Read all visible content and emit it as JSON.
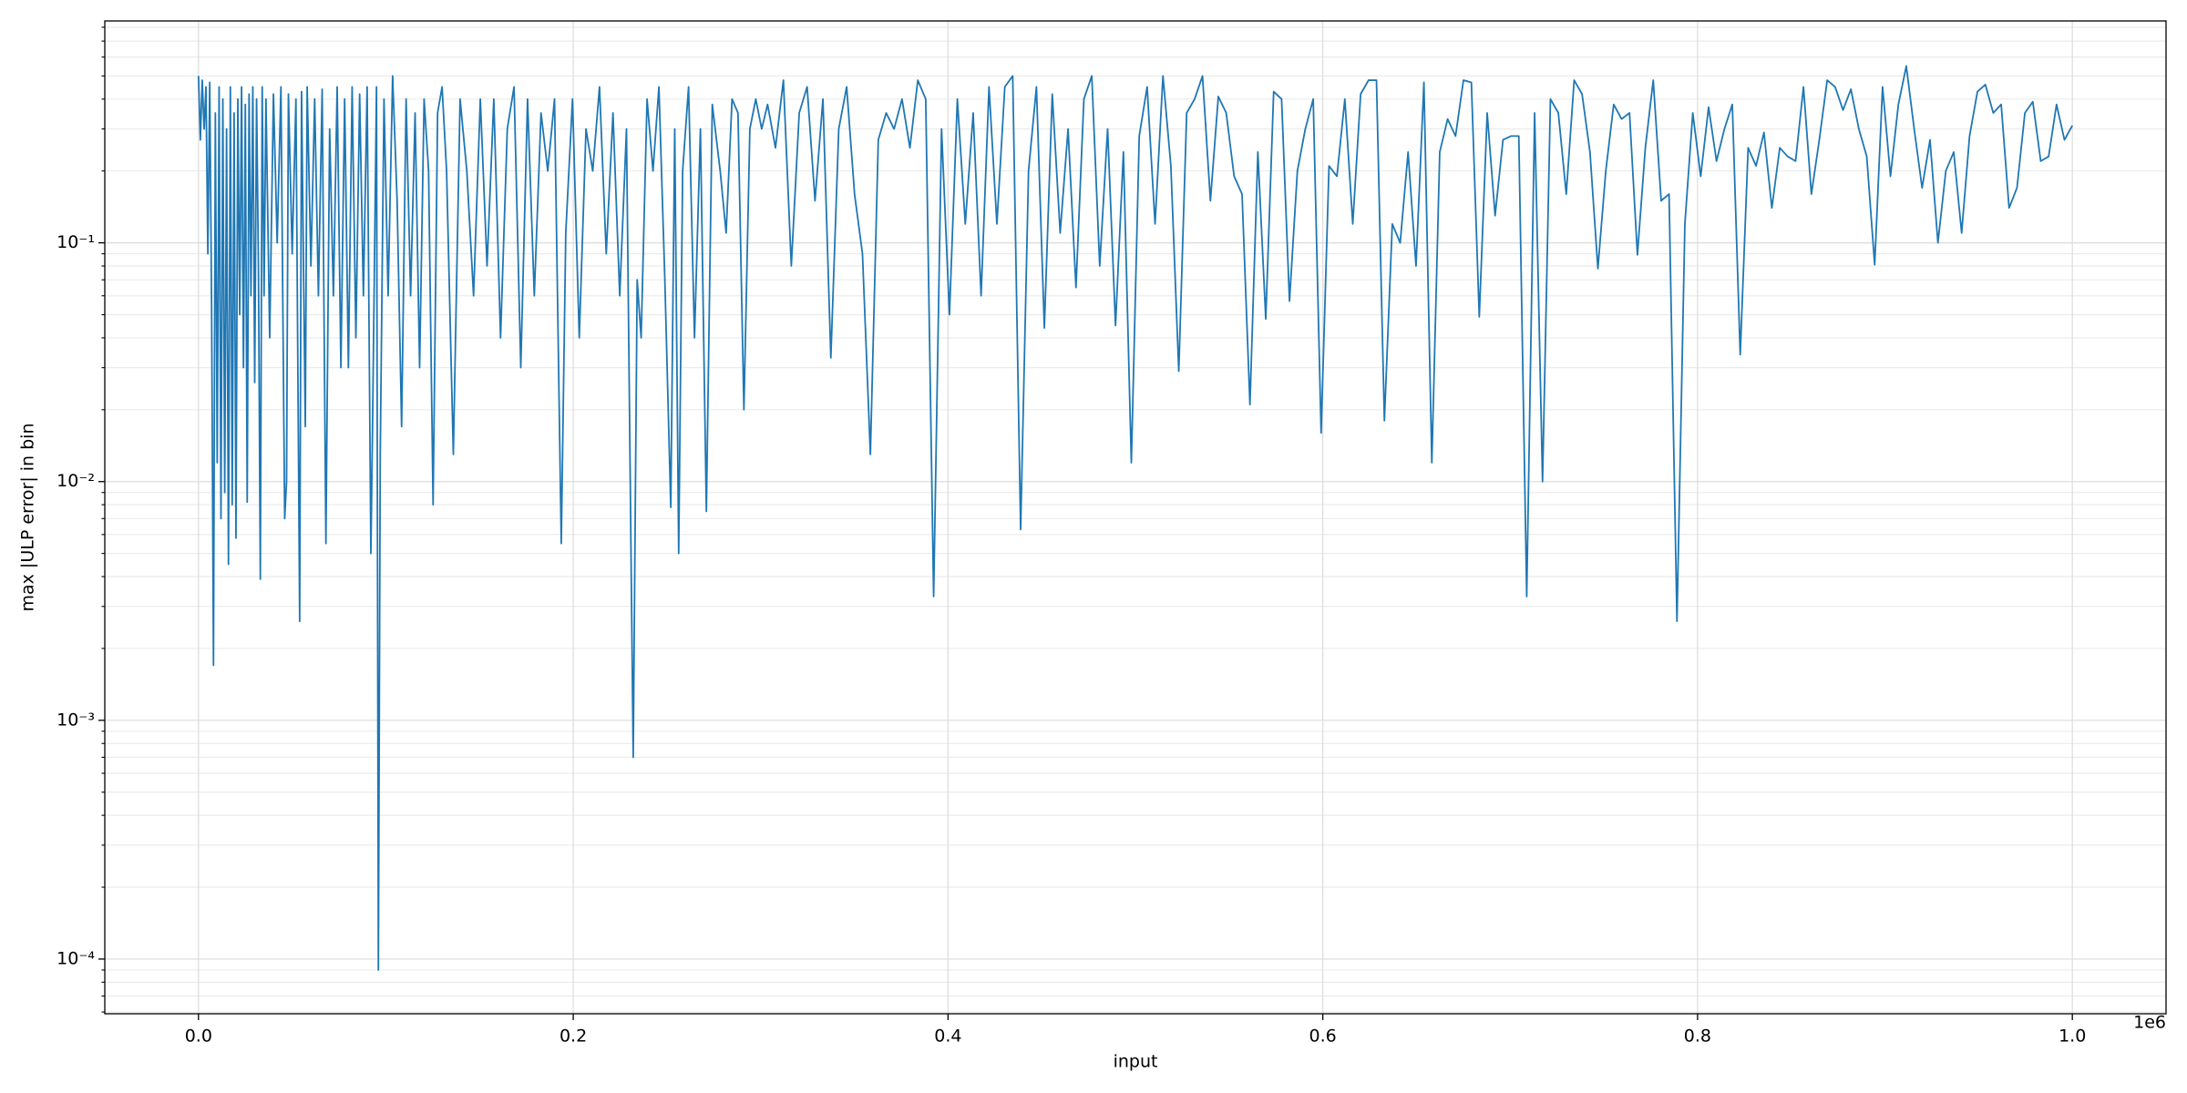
{
  "chart_data": {
    "type": "line",
    "xlabel": "input",
    "ylabel": "max |ULP error| in bin",
    "x_offset_label": "1e6",
    "color": "#1f77b4",
    "yscale": "log",
    "grid": true,
    "xlim": [
      -50000,
      1050000
    ],
    "ylim": [
      5.9e-05,
      0.85
    ],
    "xticks": [
      {
        "value": 0,
        "label": "0.0"
      },
      {
        "value": 200000,
        "label": "0.2"
      },
      {
        "value": 400000,
        "label": "0.4"
      },
      {
        "value": 600000,
        "label": "0.6"
      },
      {
        "value": 800000,
        "label": "0.8"
      },
      {
        "value": 1000000,
        "label": "1.0"
      }
    ],
    "yticks": [
      {
        "value": 0.0001,
        "label": "10⁻⁴"
      },
      {
        "value": 0.001,
        "label": "10⁻³"
      },
      {
        "value": 0.01,
        "label": "10⁻²"
      },
      {
        "value": 0.1,
        "label": "10⁻¹"
      }
    ],
    "yminorticks": [
      6e-05,
      7e-05,
      8e-05,
      9e-05,
      0.0002,
      0.0003,
      0.0004,
      0.0005,
      0.0006,
      0.0007,
      0.0008,
      0.0009,
      0.002,
      0.003,
      0.004,
      0.005,
      0.006,
      0.007,
      0.008,
      0.009,
      0.02,
      0.03,
      0.04,
      0.05,
      0.06,
      0.07,
      0.08,
      0.09,
      0.2,
      0.3,
      0.4,
      0.5,
      0.6,
      0.7,
      0.8
    ],
    "x": [
      0,
      1000,
      2000,
      3000,
      4000,
      5000,
      6000,
      7000,
      8000,
      9000,
      10000,
      11000,
      12000,
      13000,
      14000,
      15000,
      16000,
      17000,
      18000,
      19000,
      20000,
      21000,
      22000,
      23000,
      24000,
      25000,
      26000,
      27000,
      28000,
      29000,
      30000,
      31000,
      32000,
      33000,
      34000,
      35000,
      36000,
      38000,
      40000,
      42000,
      44000,
      46000,
      47000,
      48000,
      50000,
      52000,
      54000,
      55000,
      57000,
      58000,
      60000,
      62000,
      64000,
      66000,
      68000,
      70000,
      72000,
      74000,
      76000,
      78000,
      80000,
      82000,
      84000,
      86000,
      88000,
      90000,
      92000,
      93000,
      95000,
      96000,
      97000,
      99000,
      101200,
      103600,
      106000,
      108400,
      110800,
      113200,
      115600,
      118000,
      120400,
      122800,
      125200,
      127600,
      130000,
      132400,
      136000,
      139600,
      143200,
      146800,
      150400,
      154000,
      157600,
      161200,
      164800,
      168400,
      172000,
      175600,
      179200,
      182800,
      186400,
      190000,
      193600,
      196000,
      199600,
      203200,
      206800,
      210400,
      214000,
      217600,
      221200,
      224800,
      228400,
      232000,
      234110,
      236220,
      239384,
      242549,
      245714,
      248878,
      252043,
      254153,
      256263,
      258373,
      261537,
      264702,
      267867,
      271031,
      274196,
      278416,
      281580,
      284745,
      287910,
      291074,
      294239,
      297404,
      300569,
      303700,
      307920,
      312140,
      316360,
      320580,
      324800,
      329020,
      333240,
      337460,
      341680,
      345900,
      350120,
      354340,
      358560,
      362780,
      367000,
      371220,
      375440,
      379660,
      383880,
      388100,
      392320,
      396540,
      400760,
      404980,
      409200,
      413420,
      417640,
      421860,
      426080,
      430300,
      434520,
      438740,
      442960,
      447180,
      451400,
      455620,
      459840,
      464060,
      468280,
      472500,
      476720,
      480940,
      485160,
      489380,
      493600,
      497820,
      502040,
      506260,
      510480,
      514700,
      518920,
      523140,
      527360,
      531580,
      535800,
      540020,
      544240,
      548460,
      552680,
      556900,
      561120,
      565340,
      569560,
      573780,
      578000,
      582220,
      586440,
      590660,
      594880,
      599100,
      603320,
      607540,
      611760,
      615980,
      620200,
      624420,
      628640,
      632860,
      637080,
      641300,
      645520,
      649740,
      653960,
      658180,
      662400,
      666620,
      670840,
      675060,
      679280,
      683500,
      687720,
      691940,
      696160,
      700380,
      704600,
      708820,
      713040,
      717260,
      721480,
      725700,
      729920,
      734140,
      738360,
      742580,
      746800,
      751020,
      755240,
      759460,
      763680,
      767900,
      772120,
      776340,
      780560,
      784780,
      789000,
      793220,
      797440,
      801660,
      805880,
      810100,
      814320,
      818540,
      822760,
      826980,
      831200,
      835420,
      839640,
      843860,
      848080,
      852300,
      856520,
      860740,
      864960,
      869180,
      873400,
      877620,
      881840,
      886060,
      890280,
      894500,
      898720,
      902940,
      907160,
      911380,
      915600,
      919820,
      924040,
      928260,
      932480,
      936700,
      940920,
      945140,
      949360,
      953580,
      957800,
      962020,
      966240,
      970460,
      974680,
      978900,
      983120,
      987340,
      991560,
      995780,
      1000000
    ],
    "values": [
      0.5,
      0.27,
      0.48,
      0.3,
      0.45,
      0.09,
      0.47,
      0.055,
      0.0017,
      0.35,
      0.012,
      0.45,
      0.007,
      0.4,
      0.009,
      0.3,
      0.0045,
      0.45,
      0.008,
      0.35,
      0.0058,
      0.4,
      0.05,
      0.45,
      0.03,
      0.38,
      0.0082,
      0.42,
      0.06,
      0.45,
      0.026,
      0.4,
      0.08,
      0.0039,
      0.45,
      0.06,
      0.4,
      0.04,
      0.42,
      0.1,
      0.45,
      0.007,
      0.01,
      0.42,
      0.09,
      0.4,
      0.0026,
      0.43,
      0.017,
      0.45,
      0.08,
      0.4,
      0.06,
      0.44,
      0.0055,
      0.3,
      0.06,
      0.45,
      0.03,
      0.4,
      0.03,
      0.45,
      0.04,
      0.42,
      0.06,
      0.45,
      0.005,
      0.02,
      0.45,
      9e-05,
      0.013,
      0.4,
      0.06,
      0.5,
      0.15,
      0.017,
      0.4,
      0.06,
      0.35,
      0.03,
      0.4,
      0.2,
      0.008,
      0.35,
      0.45,
      0.2,
      0.013,
      0.4,
      0.2,
      0.06,
      0.4,
      0.08,
      0.4,
      0.04,
      0.3,
      0.45,
      0.03,
      0.4,
      0.06,
      0.35,
      0.2,
      0.4,
      0.0055,
      0.11,
      0.4,
      0.04,
      0.3,
      0.2,
      0.45,
      0.09,
      0.35,
      0.06,
      0.3,
      0.0007,
      0.07,
      0.04,
      0.4,
      0.2,
      0.45,
      0.07,
      0.0078,
      0.3,
      0.005,
      0.2,
      0.45,
      0.04,
      0.3,
      0.0075,
      0.38,
      0.2,
      0.11,
      0.4,
      0.35,
      0.02,
      0.3,
      0.4,
      0.3,
      0.38,
      0.25,
      0.48,
      0.08,
      0.35,
      0.45,
      0.15,
      0.4,
      0.033,
      0.3,
      0.45,
      0.16,
      0.09,
      0.013,
      0.27,
      0.35,
      0.3,
      0.4,
      0.25,
      0.48,
      0.4,
      0.0033,
      0.3,
      0.05,
      0.4,
      0.12,
      0.35,
      0.06,
      0.45,
      0.12,
      0.45,
      0.5,
      0.0063,
      0.2,
      0.45,
      0.044,
      0.42,
      0.11,
      0.3,
      0.065,
      0.4,
      0.5,
      0.08,
      0.3,
      0.045,
      0.24,
      0.012,
      0.28,
      0.45,
      0.12,
      0.5,
      0.21,
      0.029,
      0.35,
      0.4,
      0.5,
      0.15,
      0.41,
      0.35,
      0.19,
      0.16,
      0.021,
      0.24,
      0.048,
      0.43,
      0.4,
      0.057,
      0.2,
      0.3,
      0.4,
      0.016,
      0.21,
      0.19,
      0.4,
      0.12,
      0.42,
      0.48,
      0.48,
      0.018,
      0.12,
      0.1,
      0.24,
      0.08,
      0.47,
      0.012,
      0.24,
      0.33,
      0.28,
      0.48,
      0.47,
      0.049,
      0.35,
      0.13,
      0.27,
      0.28,
      0.28,
      0.0033,
      0.35,
      0.01,
      0.4,
      0.35,
      0.16,
      0.48,
      0.42,
      0.24,
      0.078,
      0.2,
      0.38,
      0.33,
      0.35,
      0.089,
      0.25,
      0.48,
      0.15,
      0.16,
      0.0026,
      0.12,
      0.35,
      0.19,
      0.37,
      0.22,
      0.3,
      0.38,
      0.034,
      0.25,
      0.21,
      0.29,
      0.14,
      0.25,
      0.23,
      0.22,
      0.45,
      0.16,
      0.27,
      0.48,
      0.45,
      0.36,
      0.44,
      0.3,
      0.23,
      0.081,
      0.45,
      0.19,
      0.38,
      0.55,
      0.3,
      0.17,
      0.27,
      0.1,
      0.2,
      0.24,
      0.11,
      0.28,
      0.43,
      0.46,
      0.35,
      0.38,
      0.14,
      0.17,
      0.35,
      0.39,
      0.22,
      0.23,
      0.38,
      0.27,
      0.31
    ]
  }
}
